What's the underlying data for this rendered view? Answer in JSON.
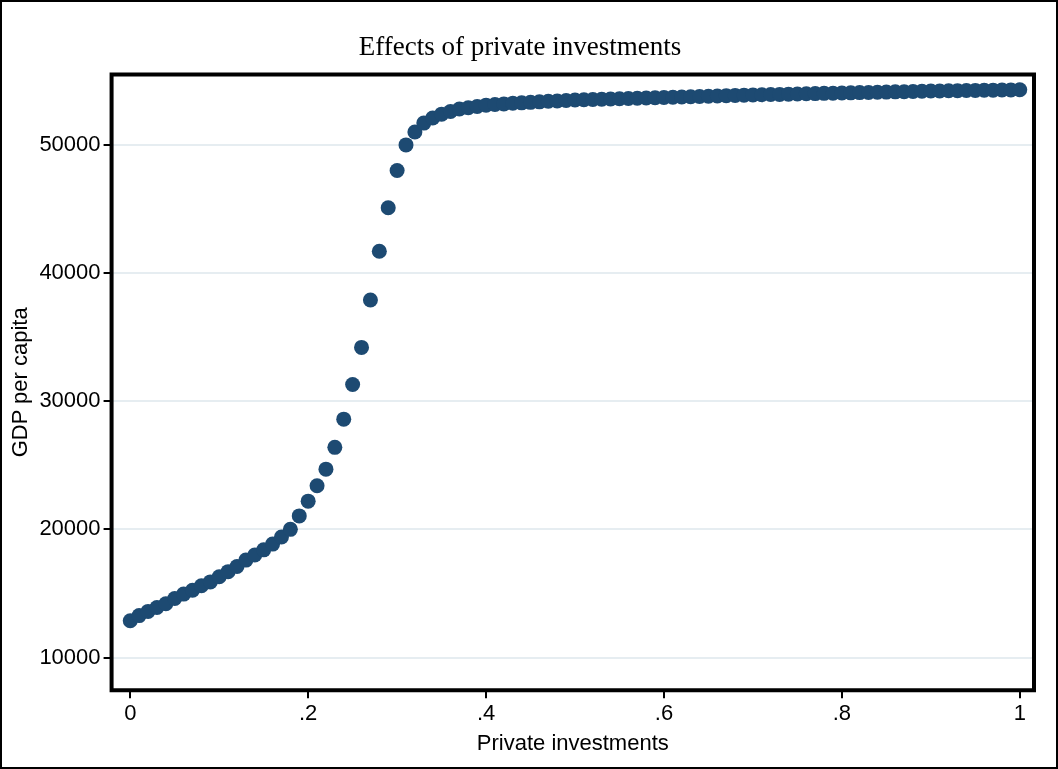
{
  "chart_data": {
    "type": "scatter",
    "title": "Effects of private investments",
    "xlabel": "Private investments",
    "ylabel": "GDP per capita",
    "x": [
      0,
      0.01,
      0.02,
      0.03,
      0.04,
      0.05,
      0.06,
      0.07,
      0.08,
      0.09,
      0.1,
      0.11,
      0.12,
      0.13,
      0.14,
      0.15,
      0.16,
      0.17,
      0.18,
      0.19,
      0.2,
      0.21,
      0.22,
      0.23,
      0.24,
      0.25,
      0.26,
      0.27,
      0.28,
      0.29,
      0.3,
      0.31,
      0.32,
      0.33,
      0.34,
      0.35,
      0.36,
      0.37,
      0.38,
      0.39,
      0.4,
      0.41,
      0.42,
      0.43,
      0.44,
      0.45,
      0.46,
      0.47,
      0.48,
      0.49,
      0.5,
      0.51,
      0.52,
      0.53,
      0.54,
      0.55,
      0.56,
      0.57,
      0.58,
      0.59,
      0.6,
      0.61,
      0.62,
      0.63,
      0.64,
      0.65,
      0.66,
      0.67,
      0.68,
      0.69,
      0.7,
      0.71,
      0.72,
      0.73,
      0.74,
      0.75,
      0.76,
      0.77,
      0.78,
      0.79,
      0.8,
      0.81,
      0.82,
      0.83,
      0.84,
      0.85,
      0.86,
      0.87,
      0.88,
      0.89,
      0.9,
      0.91,
      0.92,
      0.93,
      0.94,
      0.95,
      0.96,
      0.97,
      0.98,
      0.99,
      1
    ],
    "series": [
      {
        "color": "#1d4a72",
        "values": [
          12870,
          13270,
          13600,
          13900,
          14200,
          14600,
          14950,
          15250,
          15600,
          15900,
          16300,
          16700,
          17100,
          17600,
          18000,
          18400,
          18850,
          19400,
          20000,
          21050,
          22200,
          23400,
          24700,
          26400,
          28600,
          31300,
          34200,
          37900,
          41700,
          45100,
          48000,
          50000,
          51000,
          51700,
          52100,
          52400,
          52600,
          52800,
          52900,
          53000,
          53100,
          53150,
          53200,
          53250,
          53280,
          53320,
          53360,
          53400,
          53430,
          53460,
          53500,
          53520,
          53540,
          53560,
          53580,
          53600,
          53620,
          53640,
          53660,
          53680,
          53700,
          53720,
          53740,
          53760,
          53780,
          53800,
          53820,
          53840,
          53860,
          53880,
          53900,
          53910,
          53930,
          53940,
          53960,
          53970,
          53990,
          54000,
          54020,
          54030,
          54050,
          54060,
          54080,
          54090,
          54110,
          54120,
          54140,
          54150,
          54170,
          54180,
          54200,
          54210,
          54220,
          54230,
          54240,
          54250,
          54260,
          54270,
          54280,
          54290,
          54300
        ]
      }
    ],
    "xlim": [
      -0.021,
      1.016
    ],
    "ylim": [
      7450,
      55500
    ],
    "xticks": [
      0,
      {
        "value": 0.2,
        "label": ".2"
      },
      {
        "value": 0.4,
        "label": ".4"
      },
      {
        "value": 0.6,
        "label": ".6"
      },
      {
        "value": 0.8,
        "label": ".8"
      },
      1
    ],
    "yticks": [
      10000,
      20000,
      30000,
      40000,
      50000
    ],
    "grid": "y",
    "marker": "circle",
    "legend": false
  }
}
